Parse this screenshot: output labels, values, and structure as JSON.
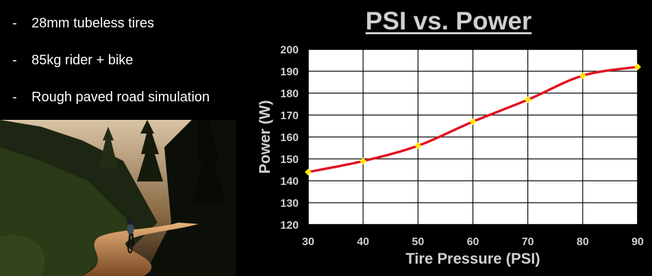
{
  "bullets": {
    "dash": "-",
    "items": [
      "28mm tubeless tires",
      "85kg rider + bike",
      "Rough paved road simulation"
    ]
  },
  "photo": {
    "description": "Cyclist riding a winding gravel road through a dark forest at dusk"
  },
  "colors": {
    "background": "#000000",
    "line": "#e10f1e",
    "marker": "#ffe600",
    "text": "#cfcfcf",
    "grid": "#000000",
    "plot_bg": "#ffffff"
  },
  "chart_data": {
    "type": "line",
    "title": "PSI vs. Power",
    "xlabel": "Tire Pressure (PSI)",
    "ylabel": "Power (W)",
    "x": [
      30,
      40,
      50,
      60,
      70,
      80,
      90
    ],
    "series": [
      {
        "values": [
          144,
          149,
          156,
          167,
          177,
          188,
          192
        ]
      }
    ],
    "xlim": [
      30,
      90
    ],
    "ylim": [
      120,
      200
    ],
    "xticks": [
      30,
      40,
      50,
      60,
      70,
      80,
      90
    ],
    "yticks": [
      120,
      130,
      140,
      150,
      160,
      170,
      180,
      190,
      200
    ],
    "grid": true,
    "legend": "none",
    "smooth": true
  }
}
